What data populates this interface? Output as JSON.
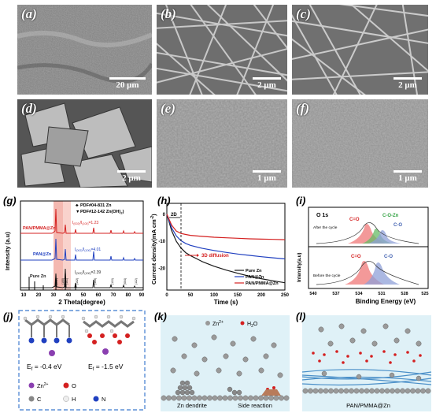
{
  "panels": {
    "a": {
      "label": "(a)",
      "scale": "20 μm"
    },
    "b": {
      "label": "(b)",
      "scale": "2 μm"
    },
    "c": {
      "label": "(c)",
      "scale": "2 μm"
    },
    "d": {
      "label": "(d)",
      "scale": "2 μm"
    },
    "e": {
      "label": "(e)",
      "scale": "1 μm"
    },
    "f": {
      "label": "(f)",
      "scale": "1 μm"
    },
    "g": {
      "label": "(g)"
    },
    "h": {
      "label": "(h)"
    },
    "i": {
      "label": "(i)"
    },
    "j": {
      "label": "(j)"
    },
    "k": {
      "label": "(k)"
    },
    "l": {
      "label": "(l)"
    }
  },
  "g": {
    "legend1": "PDF#04-831 Zn",
    "legend2": "PDF#12-142 Zn(OH)",
    "legend2_sub": "2",
    "ylabel": "Intensity (a.u)",
    "xlabel": "2 Theta(degree)",
    "xticks": [
      "10",
      "20",
      "30",
      "40",
      "50",
      "60",
      "70",
      "80",
      "90"
    ],
    "samples": [
      "PAN/PMMA@Zn",
      "PAN@Zn",
      "Pure Zn"
    ],
    "ratios": [
      "I(002)/I(100)=1.23",
      "I(002)/I(100)=4.01",
      "I(002)/I(100)=2.39"
    ],
    "ratio_texts": [
      {
        "main": "I",
        "s1": "(002)",
        "mid": "/I",
        "s2": "(100)",
        "val": "=1.23"
      },
      {
        "main": "I",
        "s1": "(002)",
        "mid": "/I",
        "s2": "(100)",
        "val": "=4.01"
      },
      {
        "main": "I",
        "s1": "(002)",
        "mid": "/I",
        "s2": "(100)",
        "val": "=2.39"
      }
    ],
    "peak_labels": [
      "(002)",
      "(100)",
      "(101)",
      "(102)",
      "(103)",
      "(110)",
      "(004)",
      "(112)"
    ]
  },
  "h": {
    "ylabel": "Current density(mA cm",
    "ylabel_sup": "-2",
    "ylabel_end": ")",
    "xlabel": "Time (s)",
    "xticks": [
      "0",
      "50",
      "100",
      "150",
      "200",
      "250"
    ],
    "yticks": [
      "0",
      "-10",
      "-20"
    ],
    "ann_2d": "2D",
    "ann_3d": "3D diffusion",
    "legend": [
      "Pure Zn",
      "PAN@Zn",
      "PAN/PMMA@Zn"
    ]
  },
  "chart_data": {
    "type": "line",
    "title": "",
    "xlabel": "Time (s)",
    "ylabel": "Current density(mA cm-2)",
    "xlim": [
      0,
      250
    ],
    "ylim": [
      -28,
      4
    ],
    "series": [
      {
        "name": "Pure Zn",
        "color": "#1a1a1a",
        "x": [
          0,
          5,
          10,
          20,
          30,
          40,
          50,
          75,
          100,
          125,
          150,
          175,
          200,
          225,
          250
        ],
        "y": [
          0,
          -3,
          -6,
          -10,
          -12.5,
          -14.2,
          -15.3,
          -17.5,
          -19.2,
          -20.6,
          -21.8,
          -22.9,
          -23.8,
          -24.6,
          -25.3
        ]
      },
      {
        "name": "PAN@Zn",
        "color": "#2040c0",
        "x": [
          0,
          5,
          10,
          20,
          30,
          40,
          50,
          75,
          100,
          125,
          150,
          175,
          200,
          225,
          250
        ],
        "y": [
          0,
          -2.5,
          -5,
          -8,
          -9.8,
          -10.8,
          -11.5,
          -12.6,
          -13.4,
          -14.1,
          -14.7,
          -15.2,
          -15.7,
          -16.1,
          -16.5
        ]
      },
      {
        "name": "PAN/PMMA@Zn",
        "color": "#d42020",
        "x": [
          0,
          5,
          10,
          20,
          30,
          40,
          50,
          75,
          100,
          125,
          150,
          175,
          200,
          225,
          250
        ],
        "y": [
          0,
          -2,
          -4,
          -6.2,
          -7.1,
          -7.5,
          -7.8,
          -8.2,
          -8.5,
          -8.7,
          -8.9,
          -9.1,
          -9.2,
          -9.3,
          -9.4
        ]
      }
    ]
  },
  "i": {
    "title": "O 1s",
    "after": "After the cycle",
    "before": "Before the cycle",
    "co_after": "C=O",
    "coz": "C-O-Zn",
    "c_o_after": "C-O",
    "co_before": "C=O",
    "c_o_before": "C-O",
    "xlabel": "Binding  Energy (eV)",
    "ylabel": "Intensity(a.u)",
    "xticks": [
      "540",
      "537",
      "534",
      "531",
      "528",
      "525"
    ]
  },
  "j": {
    "ef1": "E",
    "ef1_sub": "f",
    "ef1_val": " = -0.4 eV",
    "ef2": "E",
    "ef2_sub": "f",
    "ef2_val": " = -1.5 eV",
    "legend": [
      "Zn",
      "O",
      "C",
      "H",
      "N"
    ],
    "zn_sup": "2+"
  },
  "k": {
    "ion": "Zn",
    "ion_sup": "2+",
    "water": "H",
    "water_sub": "2",
    "water_end": "O",
    "left": "Zn dendrite",
    "right": "Side reaction"
  },
  "l": {
    "caption": "PAN/PMMA@Zn"
  },
  "colors": {
    "red": "#d42020",
    "blue": "#2040c0",
    "black": "#1a1a1a",
    "highlight": "#f4b8b0",
    "frame_blue": "#5b8fd6",
    "panel_bg": "#dff1f7",
    "c_o_z": "#2fa040",
    "c_o": "#4060b0"
  }
}
